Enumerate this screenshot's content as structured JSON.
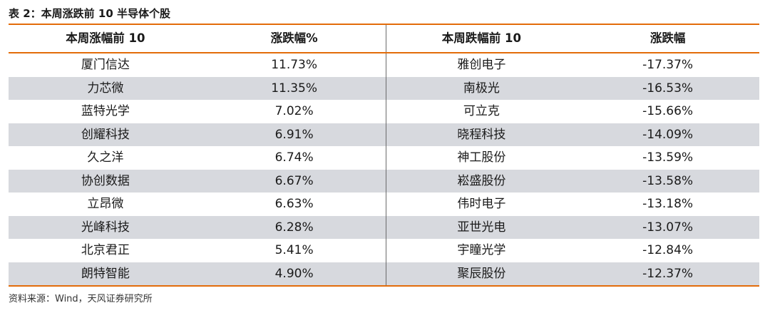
{
  "caption": "表 2：本周涨跌前 10 半导体个股",
  "headers": {
    "left_name": "本周涨幅前 10",
    "left_change": "涨跌幅%",
    "right_name": "本周跌幅前 10",
    "right_change": "涨跌幅"
  },
  "rows": [
    {
      "gain_name": "厦门信达",
      "gain_pct": "11.73%",
      "loss_name": "雅创电子",
      "loss_pct": "-17.37%"
    },
    {
      "gain_name": "力芯微",
      "gain_pct": "11.35%",
      "loss_name": "南极光",
      "loss_pct": "-16.53%"
    },
    {
      "gain_name": "蓝特光学",
      "gain_pct": "7.02%",
      "loss_name": "可立克",
      "loss_pct": "-15.66%"
    },
    {
      "gain_name": "创耀科技",
      "gain_pct": "6.91%",
      "loss_name": "晓程科技",
      "loss_pct": "-14.09%"
    },
    {
      "gain_name": "久之洋",
      "gain_pct": "6.74%",
      "loss_name": "神工股份",
      "loss_pct": "-13.59%"
    },
    {
      "gain_name": "协创数据",
      "gain_pct": "6.67%",
      "loss_name": "崧盛股份",
      "loss_pct": "-13.58%"
    },
    {
      "gain_name": "立昂微",
      "gain_pct": "6.63%",
      "loss_name": "伟时电子",
      "loss_pct": "-13.18%"
    },
    {
      "gain_name": "光峰科技",
      "gain_pct": "6.28%",
      "loss_name": "亚世光电",
      "loss_pct": "-13.07%"
    },
    {
      "gain_name": "北京君正",
      "gain_pct": "5.41%",
      "loss_name": "宇瞳光学",
      "loss_pct": "-12.84%"
    },
    {
      "gain_name": "朗特智能",
      "gain_pct": "4.90%",
      "loss_name": "聚辰股份",
      "loss_pct": "-12.37%"
    }
  ],
  "source": "资料来源：Wind，天风证券研究所",
  "colors": {
    "accent": "#e36c0a",
    "row_shade": "#d7d9de",
    "divider": "#6b6b6b"
  }
}
